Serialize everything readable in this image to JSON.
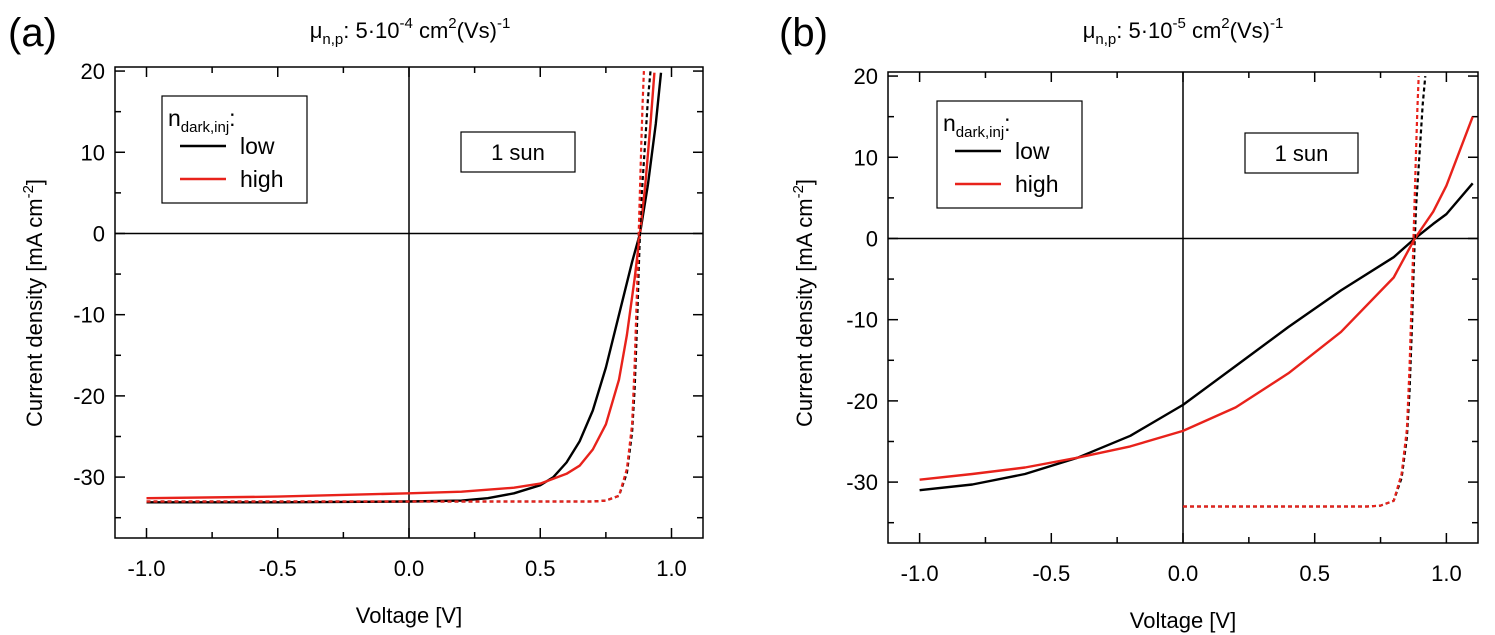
{
  "chart_data": [
    {
      "type": "line",
      "panel_label": "(a)",
      "title": {
        "mu": "μ",
        "sub": "n,p",
        "pre": ": 5·10",
        "exp": "-4",
        "cm": " cm",
        "cm_exp": "2",
        "unit": "(Vs)",
        "unit_exp": "-1"
      },
      "xlabel": "Voltage [V]",
      "ylabel": {
        "text": "Current density [mA cm",
        "sup": "-2",
        "close": "]"
      },
      "xlim": [
        -1.12,
        1.12
      ],
      "ylim": [
        -37.5,
        20.5
      ],
      "xticks": [
        -1.0,
        -0.5,
        0.0,
        0.5,
        1.0
      ],
      "xtick_labels": [
        "-1.0",
        "-0.5",
        "0.0",
        "0.5",
        "1.0"
      ],
      "yticks": [
        -30,
        -20,
        -10,
        0,
        10,
        20
      ],
      "ytick_labels": [
        "-30",
        "-20",
        "-10",
        "0",
        "10",
        "20"
      ],
      "legend": {
        "title": "n",
        "title_sub": "dark,inj",
        "title_suffix": ":",
        "position": "top-left",
        "entries": [
          {
            "label": "low",
            "color": "#000000"
          },
          {
            "label": "high",
            "color": "#e8221b"
          }
        ]
      },
      "annotation": "1 sun",
      "series": [
        {
          "name": "low",
          "style": "solid",
          "color": "#000000",
          "x": [
            -1.0,
            -0.5,
            0.0,
            0.2,
            0.3,
            0.4,
            0.5,
            0.55,
            0.6,
            0.65,
            0.7,
            0.75,
            0.8,
            0.85,
            0.88,
            0.91,
            0.94,
            0.96
          ],
          "y": [
            -33.1,
            -33.1,
            -33.0,
            -32.9,
            -32.6,
            -32.0,
            -31.0,
            -30.0,
            -28.2,
            -25.6,
            -21.8,
            -16.5,
            -10.0,
            -3.5,
            0.0,
            6.0,
            13.5,
            19.8
          ]
        },
        {
          "name": "high",
          "style": "solid",
          "color": "#e8221b",
          "x": [
            -1.0,
            -0.5,
            0.0,
            0.2,
            0.4,
            0.5,
            0.6,
            0.65,
            0.7,
            0.75,
            0.8,
            0.83,
            0.86,
            0.88,
            0.9,
            0.92,
            0.935
          ],
          "y": [
            -32.6,
            -32.4,
            -32.0,
            -31.8,
            -31.3,
            -30.8,
            -29.6,
            -28.6,
            -26.6,
            -23.5,
            -18.0,
            -12.5,
            -5.5,
            0.0,
            6.0,
            13.5,
            19.8
          ]
        },
        {
          "name": "low, reference (dashed)",
          "style": "dashed",
          "color": "#000000",
          "x": [
            -1.0,
            0.0,
            0.5,
            0.7,
            0.75,
            0.8,
            0.83,
            0.85,
            0.86,
            0.87,
            0.875,
            0.88,
            0.885,
            0.9,
            0.91,
            0.92
          ],
          "y": [
            -33.0,
            -33.0,
            -33.0,
            -33.0,
            -32.9,
            -32.3,
            -29.5,
            -24.5,
            -19.0,
            -10.0,
            -4.5,
            0.0,
            4.0,
            11.5,
            16.5,
            20.0
          ]
        },
        {
          "name": "high, reference (dashed)",
          "style": "dashed",
          "color": "#e8221b",
          "x": [
            -1.0,
            0.0,
            0.5,
            0.7,
            0.75,
            0.8,
            0.83,
            0.85,
            0.86,
            0.87,
            0.875,
            0.88,
            0.885,
            0.89,
            0.895
          ],
          "y": [
            -33.0,
            -33.0,
            -33.0,
            -33.0,
            -32.9,
            -32.3,
            -29.0,
            -23.5,
            -16.0,
            -5.5,
            0.0,
            5.5,
            11.0,
            16.0,
            20.0
          ]
        }
      ]
    },
    {
      "type": "line",
      "panel_label": "(b)",
      "title": {
        "mu": "μ",
        "sub": "n,p",
        "pre": ": 5·10",
        "exp": "-5",
        "cm": " cm",
        "cm_exp": "2",
        "unit": "(Vs)",
        "unit_exp": "-1"
      },
      "xlabel": "Voltage [V]",
      "ylabel": {
        "text": "Current density [mA cm",
        "sup": "-2",
        "close": "]"
      },
      "xlim": [
        -1.12,
        1.12
      ],
      "ylim": [
        -37.5,
        20.5
      ],
      "xticks": [
        -1.0,
        -0.5,
        0.0,
        0.5,
        1.0
      ],
      "xtick_labels": [
        "-1.0",
        "-0.5",
        "0.0",
        "0.5",
        "1.0"
      ],
      "yticks": [
        -30,
        -20,
        -10,
        0,
        10,
        20
      ],
      "ytick_labels": [
        "-30",
        "-20",
        "-10",
        "0",
        "10",
        "20"
      ],
      "legend": {
        "title": "n",
        "title_sub": "dark,inj",
        "title_suffix": ":",
        "position": "top-left",
        "entries": [
          {
            "label": "low",
            "color": "#000000"
          },
          {
            "label": "high",
            "color": "#e8221b"
          }
        ]
      },
      "annotation": "1 sun",
      "series": [
        {
          "name": "low",
          "style": "solid",
          "color": "#000000",
          "x": [
            -1.0,
            -0.8,
            -0.6,
            -0.4,
            -0.2,
            0.0,
            0.2,
            0.4,
            0.6,
            0.8,
            0.88,
            0.95,
            1.0,
            1.1
          ],
          "y": [
            -31.0,
            -30.3,
            -29.0,
            -27.0,
            -24.3,
            -20.5,
            -15.7,
            -10.9,
            -6.4,
            -2.3,
            0.0,
            1.8,
            3.0,
            6.8
          ]
        },
        {
          "name": "high",
          "style": "solid",
          "color": "#e8221b",
          "x": [
            -1.0,
            -0.8,
            -0.6,
            -0.4,
            -0.2,
            0.0,
            0.2,
            0.4,
            0.6,
            0.8,
            0.88,
            0.95,
            1.0,
            1.1
          ],
          "y": [
            -29.7,
            -29.0,
            -28.2,
            -27.0,
            -25.6,
            -23.7,
            -20.8,
            -16.6,
            -11.5,
            -4.8,
            0.0,
            3.3,
            6.5,
            15.0
          ]
        },
        {
          "name": "low, reference (dashed)",
          "style": "dashed",
          "color": "#000000",
          "x": [
            0.0,
            0.5,
            0.7,
            0.75,
            0.8,
            0.83,
            0.85,
            0.86,
            0.87,
            0.875,
            0.88,
            0.885,
            0.9,
            0.91,
            0.92
          ],
          "y": [
            -33.0,
            -33.0,
            -33.0,
            -32.9,
            -32.3,
            -29.5,
            -24.5,
            -19.0,
            -10.0,
            -4.5,
            0.0,
            4.0,
            11.5,
            16.5,
            20.0
          ]
        },
        {
          "name": "high, reference (dashed)",
          "style": "dashed",
          "color": "#e8221b",
          "x": [
            0.0,
            0.5,
            0.7,
            0.75,
            0.8,
            0.83,
            0.85,
            0.86,
            0.87,
            0.875,
            0.88,
            0.885,
            0.89,
            0.895
          ],
          "y": [
            -33.0,
            -33.0,
            -33.0,
            -32.9,
            -32.3,
            -29.0,
            -23.5,
            -16.0,
            -5.5,
            0.0,
            5.5,
            11.0,
            16.0,
            20.0
          ]
        }
      ]
    }
  ]
}
